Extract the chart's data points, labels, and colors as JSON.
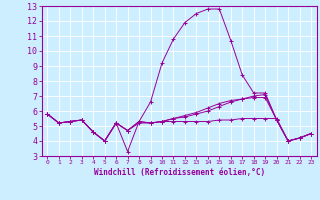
{
  "xlabel": "Windchill (Refroidissement éolien,°C)",
  "background_color": "#cceeff",
  "line_color": "#990099",
  "grid_color": "#aaddcc",
  "xlim": [
    -0.5,
    23.5
  ],
  "ylim": [
    3,
    13
  ],
  "yticks": [
    3,
    4,
    5,
    6,
    7,
    8,
    9,
    10,
    11,
    12,
    13
  ],
  "xticks": [
    0,
    1,
    2,
    3,
    4,
    5,
    6,
    7,
    8,
    9,
    10,
    11,
    12,
    13,
    14,
    15,
    16,
    17,
    18,
    19,
    20,
    21,
    22,
    23
  ],
  "line1": [
    5.8,
    5.2,
    5.3,
    5.4,
    4.6,
    4.0,
    5.2,
    4.7,
    5.2,
    5.2,
    5.3,
    5.3,
    5.3,
    5.3,
    5.3,
    5.4,
    5.4,
    5.5,
    5.5,
    5.5,
    5.5,
    4.0,
    4.2,
    4.5
  ],
  "line2": [
    5.8,
    5.2,
    5.3,
    5.4,
    4.6,
    4.0,
    5.2,
    3.3,
    5.3,
    6.6,
    9.2,
    10.8,
    11.9,
    12.5,
    12.8,
    12.8,
    10.7,
    8.4,
    7.2,
    7.2,
    5.4,
    4.0,
    4.2,
    4.5
  ],
  "line3": [
    5.8,
    5.2,
    5.3,
    5.4,
    4.6,
    4.0,
    5.2,
    4.7,
    5.3,
    5.2,
    5.3,
    5.5,
    5.6,
    5.8,
    6.0,
    6.3,
    6.6,
    6.8,
    7.0,
    7.1,
    5.4,
    4.0,
    4.2,
    4.5
  ],
  "line4": [
    5.8,
    5.2,
    5.3,
    5.4,
    4.6,
    4.0,
    5.2,
    4.7,
    5.3,
    5.2,
    5.3,
    5.5,
    5.7,
    5.9,
    6.2,
    6.5,
    6.7,
    6.8,
    6.9,
    6.9,
    5.4,
    4.0,
    4.2,
    4.5
  ],
  "xlabel_fontsize": 5.5,
  "ytick_fontsize": 6,
  "xtick_fontsize": 4.5
}
